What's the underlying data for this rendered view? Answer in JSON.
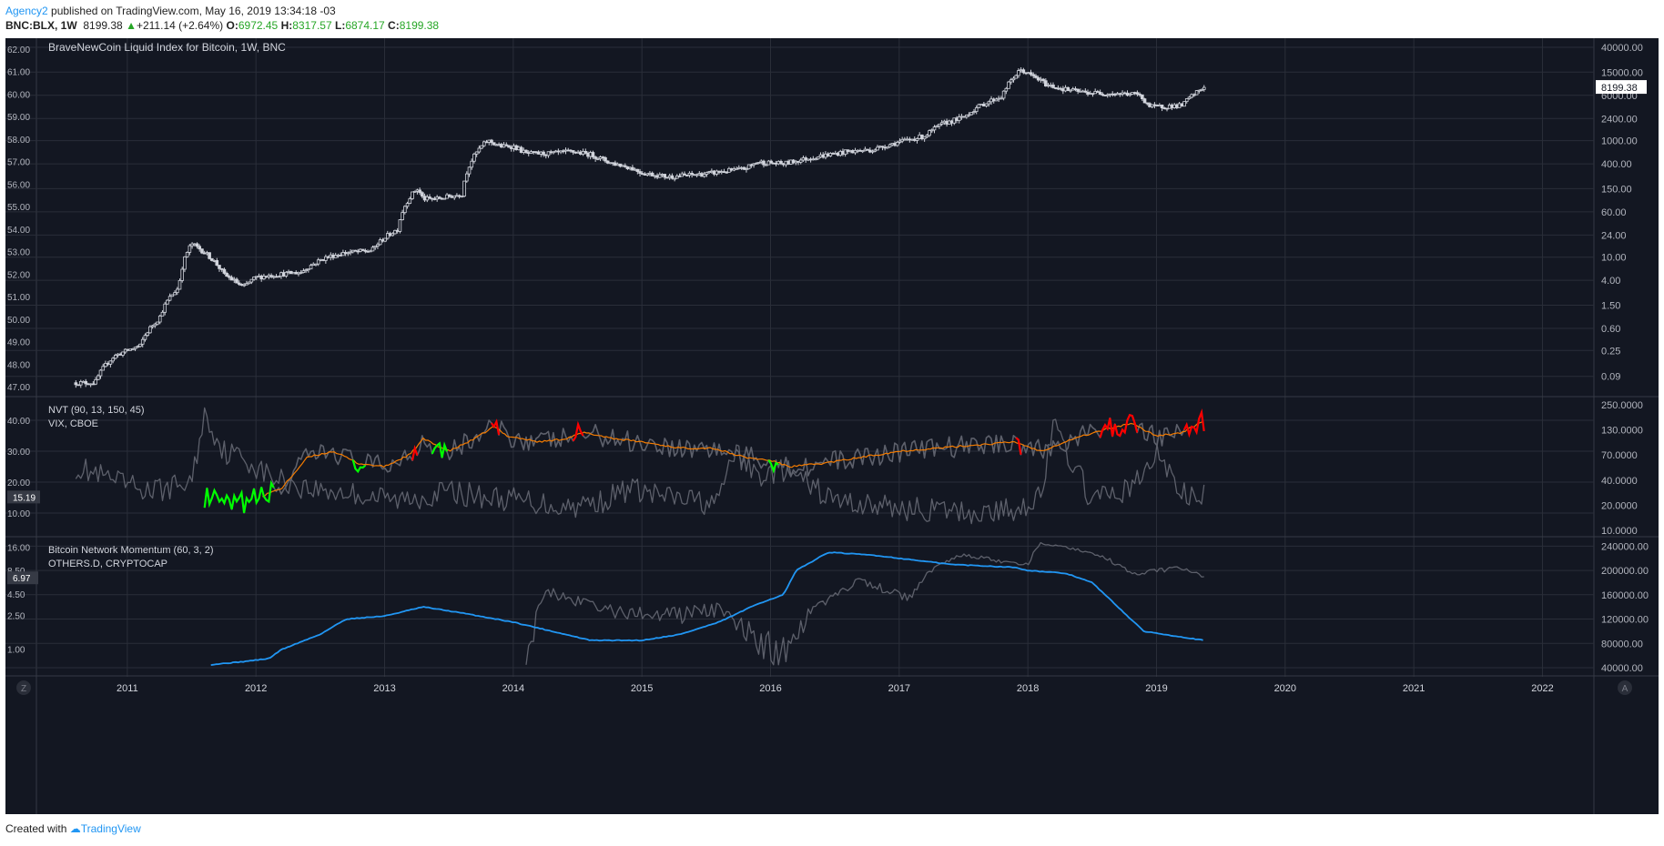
{
  "header": {
    "user": "Agency2",
    "published": " published on TradingView.com, May 16, 2019 13:34:18 -03",
    "symbol": "BNC:BLX, 1W",
    "last": "8199.38",
    "change": "+211.14 (+2.64%)",
    "o_label": "O:",
    "o_value": "6972.45",
    "h_label": "H:",
    "h_value": "8317.57",
    "l_label": "L:",
    "l_value": "6874.17",
    "c_label": "C:",
    "c_value": "8199.38"
  },
  "colors": {
    "background": "#131722",
    "grid_line": "#2a2e39",
    "candle": "#d1d4dc",
    "nvt_line": "#f57c00",
    "nvt_high": "#ff0000",
    "nvt_low": "#00ff00",
    "gray_series": "#5d606b",
    "momentum": "#2196f3",
    "axis_text": "#b2b5be",
    "legend_text": "#d1d4dc"
  },
  "footer": {
    "created": "Created with",
    "brand": "TradingView"
  },
  "chart_data": [
    {
      "type": "line",
      "title": "BraveNewCoin Liquid Index for Bitcoin, 1W, BNC",
      "style": "candlestick-weekly",
      "x": [
        2010.6,
        2010.75,
        2010.9,
        2011.1,
        2011.25,
        2011.4,
        2011.5,
        2011.6,
        2011.75,
        2011.9,
        2012.0,
        2012.15,
        2012.35,
        2012.55,
        2012.7,
        2012.9,
        2013.1,
        2013.25,
        2013.3,
        2013.4,
        2013.6,
        2013.8,
        2013.9,
        2014.0,
        2014.1,
        2014.3,
        2014.45,
        2014.6,
        2014.75,
        2014.9,
        2015.0,
        2015.2,
        2015.5,
        2015.8,
        2015.9,
        2016.1,
        2016.4,
        2016.6,
        2016.8,
        2017.0,
        2017.2,
        2017.35,
        2017.5,
        2017.65,
        2017.8,
        2017.95,
        2018.0,
        2018.15,
        2018.3,
        2018.45,
        2018.6,
        2018.85,
        2018.95,
        2019.2,
        2019.37
      ],
      "y": [
        0.07,
        0.07,
        0.2,
        0.3,
        0.9,
        3.0,
        17.0,
        12.0,
        5.0,
        3.0,
        4.5,
        5.0,
        5.5,
        10.0,
        12.0,
        13.0,
        30.0,
        150.0,
        100.0,
        100.0,
        120.0,
        1000.0,
        800.0,
        800.0,
        600.0,
        600.0,
        650.0,
        580.0,
        420.0,
        350.0,
        280.0,
        240.0,
        270.0,
        330.0,
        430.0,
        400.0,
        550.0,
        650.0,
        700.0,
        950.0,
        1200.0,
        2000.0,
        2500.0,
        4200.0,
        5800.0,
        16500.0,
        14000.0,
        9000.0,
        7500.0,
        6700.0,
        6500.0,
        6300.0,
        3800.0,
        4000.0,
        8199.38
      ],
      "right_axis_ticks": [
        "40000.00",
        "15000.00",
        "6000.00",
        "2400.00",
        "1000.00",
        "400.00",
        "150.00",
        "60.00",
        "24.00",
        "10.00",
        "4.00",
        "1.50",
        "0.60",
        "0.25",
        "0.09"
      ],
      "left_axis_ticks": [
        "62.00",
        "61.00",
        "60.00",
        "59.00",
        "58.00",
        "57.00",
        "56.00",
        "55.00",
        "54.00",
        "53.00",
        "52.00",
        "51.00",
        "50.00",
        "49.00",
        "48.00",
        "47.00"
      ],
      "last_value_label": "8199.38",
      "scale": "log"
    },
    {
      "type": "line",
      "title": "NVT (90, 13, 150, 45)",
      "subtitle": "VIX, CBOE",
      "series": [
        {
          "name": "NVT signal",
          "x": [
            2011.6,
            2011.8,
            2011.95,
            2012.2,
            2012.4,
            2012.6,
            2012.8,
            2013.0,
            2013.2,
            2013.3,
            2013.5,
            2013.7,
            2013.85,
            2013.95,
            2014.2,
            2014.4,
            2014.55,
            2014.8,
            2015.0,
            2015.3,
            2015.55,
            2015.8,
            2016.0,
            2016.15,
            2016.4,
            2016.7,
            2017.0,
            2017.3,
            2017.6,
            2017.9,
            2018.1,
            2018.35,
            2018.6,
            2018.8,
            2019.0,
            2019.2,
            2019.37
          ],
          "y": [
            15,
            12,
            14,
            18,
            28,
            30,
            26,
            25,
            29,
            34,
            30,
            34,
            38,
            35,
            33,
            34,
            36,
            34,
            33,
            31,
            31,
            28,
            27,
            25,
            26,
            28,
            30,
            31,
            32,
            33,
            30,
            34,
            37,
            39,
            35,
            36,
            40
          ]
        },
        {
          "name": "VIX",
          "x": [
            2010.6,
            2010.9,
            2011.2,
            2011.5,
            2011.6,
            2011.75,
            2011.9,
            2012.1,
            2012.4,
            2012.8,
            2013.1,
            2013.5,
            2013.8,
            2014.1,
            2014.4,
            2014.7,
            2014.9,
            2015.2,
            2015.6,
            2015.7,
            2015.9,
            2016.1,
            2016.5,
            2016.9,
            2017.2,
            2017.6,
            2017.9,
            2018.1,
            2018.2,
            2018.5,
            2018.8,
            2018.95,
            2019.0,
            2019.2,
            2019.37
          ],
          "y": [
            25,
            20,
            17,
            20,
            42,
            30,
            28,
            22,
            18,
            16,
            14,
            17,
            15,
            14,
            12,
            14,
            18,
            15,
            13,
            30,
            22,
            24,
            14,
            12,
            11,
            10,
            11,
            16,
            38,
            14,
            18,
            25,
            30,
            16,
            15.19
          ]
        }
      ],
      "left_axis_ticks": [
        "40.00",
        "30.00",
        "20.00",
        "10.00"
      ],
      "right_axis_ticks": [
        "250.0000",
        "130.0000",
        "70.0000",
        "40.0000",
        "20.0000",
        "10.0000"
      ],
      "last_value_label": "15.19"
    },
    {
      "type": "line",
      "title": "Bitcoin Network Momentum (60, 3, 2)",
      "subtitle": "OTHERS.D, CRYPTOCAP",
      "series": [
        {
          "name": "Bitcoin Network Momentum",
          "x": [
            2011.65,
            2011.9,
            2012.1,
            2012.2,
            2012.5,
            2012.7,
            2013.0,
            2013.3,
            2013.6,
            2014.0,
            2014.3,
            2014.6,
            2015.0,
            2015.3,
            2015.6,
            2015.9,
            2016.1,
            2016.2,
            2016.45,
            2016.8,
            2017.0,
            2017.4,
            2017.9,
            2018.0,
            2018.3,
            2018.5,
            2018.7,
            2018.9,
            2019.37
          ],
          "y": [
            45000,
            50000,
            55000,
            70000,
            95000,
            120000,
            125000,
            140000,
            130000,
            115000,
            100000,
            85000,
            85000,
            95000,
            115000,
            145000,
            160000,
            200000,
            230000,
            225000,
            220000,
            210000,
            205000,
            200000,
            195000,
            180000,
            140000,
            100000,
            85000
          ]
        },
        {
          "name": "OTHERS.D",
          "x": [
            2014.1,
            2014.15,
            2014.25,
            2014.4,
            2014.6,
            2014.8,
            2015.1,
            2015.35,
            2015.6,
            2015.75,
            2015.9,
            2016.05,
            2016.25,
            2016.5,
            2016.7,
            2016.9,
            2017.1,
            2017.3,
            2017.5,
            2017.8,
            2018.0,
            2018.1,
            2018.4,
            2018.6,
            2018.8,
            2019.0,
            2019.2,
            2019.37
          ],
          "y": [
            1.0,
            1.5,
            5.0,
            4.0,
            3.5,
            2.8,
            2.5,
            2.6,
            3.0,
            2.0,
            1.2,
            0.9,
            2.0,
            4.5,
            6.5,
            5.0,
            4.0,
            10.0,
            13.0,
            11.0,
            10.0,
            18.0,
            15.0,
            12.0,
            8.0,
            8.5,
            9.0,
            6.97
          ]
        }
      ],
      "left_axis_ticks": [
        "16.00",
        "8.50",
        "4.50",
        "2.50",
        "1.00"
      ],
      "right_axis_ticks": [
        "240000.00",
        "200000.00",
        "160000.00",
        "120000.00",
        "80000.00",
        "40000.00"
      ],
      "last_value_label": "6.97"
    }
  ],
  "x_axis_years": [
    "2011",
    "2012",
    "2013",
    "2014",
    "2015",
    "2016",
    "2017",
    "2018",
    "2019",
    "2020",
    "2021",
    "2022"
  ],
  "scale_buttons": {
    "left": "Z",
    "right": "A"
  }
}
